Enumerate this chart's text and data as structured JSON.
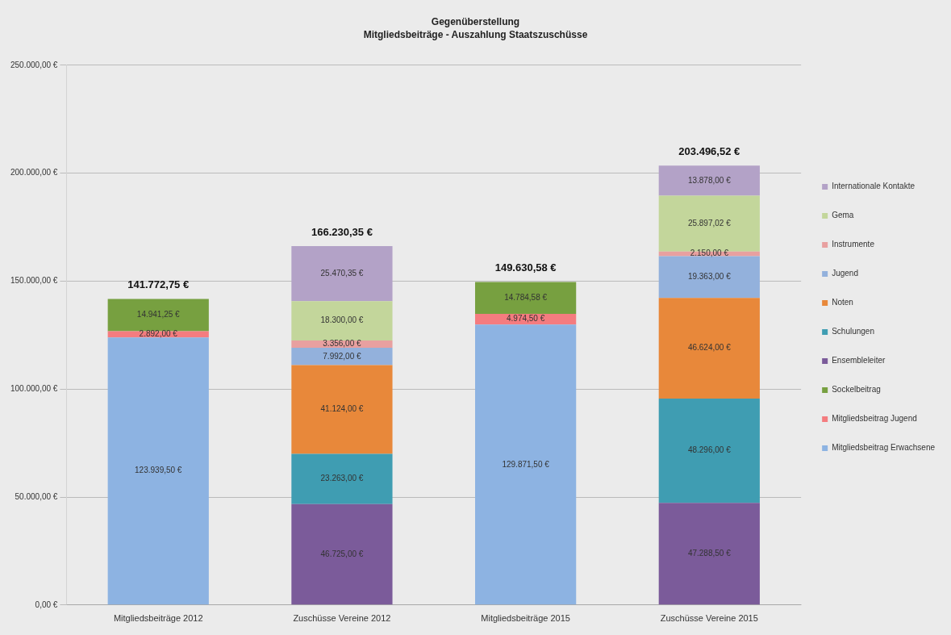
{
  "chart_data": {
    "type": "bar",
    "title": "Gegenüberstellung",
    "subtitle": "Mitgliedsbeiträge - Auszahlung Staatszuschüsse",
    "categories": [
      "Mitgliedsbeiträge 2012",
      "Zuschüsse Vereine 2012",
      "Mitgliedsbeiträge 2015",
      "Zuschüsse Vereine 2015"
    ],
    "stacked": true,
    "series": [
      {
        "name": "Mitgliedsbeitrag Erwachsene",
        "color": "#8db3e2",
        "values": [
          123939.5,
          null,
          129871.5,
          null
        ],
        "value_labels": [
          "123.939,50 €",
          null,
          "129.871,50 €",
          null
        ]
      },
      {
        "name": "Mitgliedsbeitrag Jugend",
        "color": "#f47c7f",
        "values": [
          2892,
          null,
          4974.5,
          null
        ],
        "value_labels": [
          "2.892,00 €",
          null,
          "4.974,50 €",
          null
        ]
      },
      {
        "name": "Sockelbeitrag",
        "color": "#77a040",
        "values": [
          14941.25,
          null,
          14784.58,
          null
        ],
        "value_labels": [
          "14.941,25 €",
          null,
          "14.784,58 €",
          null
        ]
      },
      {
        "name": "Ensembleleiter",
        "color": "#7b5b9a",
        "values": [
          null,
          46725,
          null,
          47288.5
        ],
        "value_labels": [
          null,
          "46.725,00 €",
          null,
          "47.288,50 €"
        ]
      },
      {
        "name": "Schulungen",
        "color": "#3f9db2",
        "values": [
          null,
          23263,
          null,
          48296
        ],
        "value_labels": [
          null,
          "23.263,00 €",
          null,
          "48.296,00 €"
        ]
      },
      {
        "name": "Noten",
        "color": "#e8883a",
        "values": [
          null,
          41124,
          null,
          46624
        ],
        "value_labels": [
          null,
          "41.124,00 €",
          null,
          "46.624,00 €"
        ]
      },
      {
        "name": "Jugend",
        "color": "#93b1dc",
        "values": [
          null,
          7992,
          null,
          19363
        ],
        "value_labels": [
          null,
          "7.992,00 €",
          null,
          "19.363,00 €"
        ]
      },
      {
        "name": "Instrumente",
        "color": "#e8a0a0",
        "values": [
          null,
          3356,
          null,
          2150
        ],
        "value_labels": [
          null,
          "3.356,00 €",
          null,
          "2.150,00 €"
        ]
      },
      {
        "name": "Gema",
        "color": "#c3d69b",
        "values": [
          null,
          18300,
          null,
          25897.02
        ],
        "value_labels": [
          null,
          "18.300,00 €",
          null,
          "25.897,02 €"
        ]
      },
      {
        "name": "Internationale Kontakte",
        "color": "#b3a2c7",
        "values": [
          null,
          25470.35,
          null,
          13878
        ],
        "value_labels": [
          null,
          "25.470,35 €",
          null,
          "13.878,00 €"
        ]
      }
    ],
    "totals": [
      "141.772,75 €",
      "166.230,35 €",
      "149.630,58 €",
      "203.496,52 €"
    ],
    "ylim": [
      0,
      250000
    ],
    "yticks": [
      {
        "value": 0,
        "label": "0,00 €"
      },
      {
        "value": 50000,
        "label": "50.000,00 €"
      },
      {
        "value": 100000,
        "label": "100.000,00 €"
      },
      {
        "value": 150000,
        "label": "150.000,00 €"
      },
      {
        "value": 200000,
        "label": "200.000,00 €"
      },
      {
        "value": 250000,
        "label": "250.000,00 €"
      }
    ],
    "grid": "y",
    "legend": "right"
  }
}
